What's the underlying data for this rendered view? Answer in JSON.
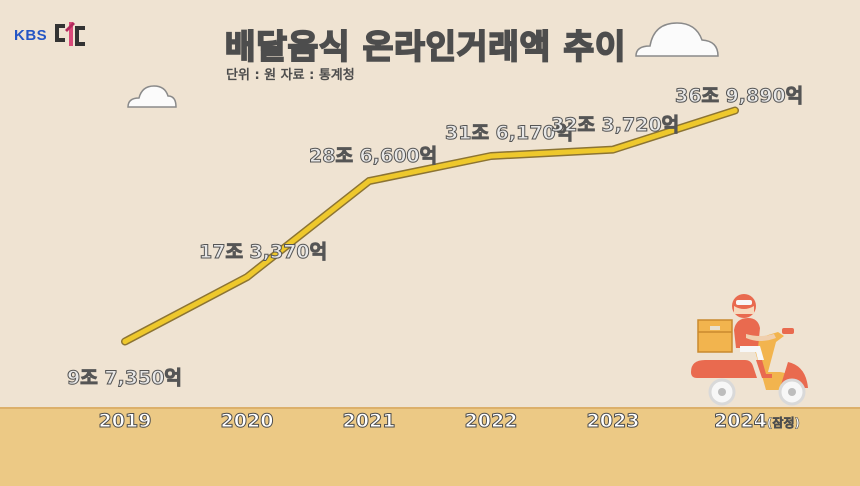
{
  "logo": {
    "text": "KBS",
    "mark_text": "더보다",
    "mark_icon": "kbs-dbd-logo-mark"
  },
  "title": "배달음식 온라인거래액 추이",
  "subtitle": "단위 : 원   자료 : 통계청",
  "colors": {
    "background": "#efe3d2",
    "ground": "#ecc985",
    "line": "#eec82c",
    "line_outline": "#8c7433"
  },
  "illustration": {
    "icon": "delivery-scooter-rider-icon",
    "clouds": 2
  },
  "chart_data": {
    "type": "line",
    "title": "배달음식 온라인거래액 추이",
    "subtitle": "단위 : 원   자료 : 통계청",
    "xlabel": "",
    "ylabel": "",
    "categories": [
      "2019",
      "2020",
      "2021",
      "2022",
      "2023",
      "2024"
    ],
    "category_suffix": {
      "2024": "(잠정)"
    },
    "values": [
      97350,
      173370,
      286600,
      316170,
      323720,
      369890
    ],
    "value_unit": "억 원",
    "data_labels": [
      "9조 7,350억",
      "17조 3,370억",
      "28조 6,600억",
      "31조 6,170억",
      "32조 3,720억",
      "36조 9,890억"
    ],
    "ylim": [
      0,
      400000
    ],
    "grid": false,
    "legend": "none"
  }
}
